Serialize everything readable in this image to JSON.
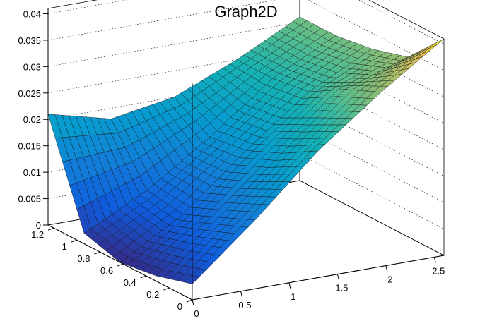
{
  "chart_data": {
    "type": "surface",
    "title": "Graph2D",
    "xlabel": "",
    "ylabel": "",
    "zlabel": "",
    "xlim": [
      0,
      2.6
    ],
    "ylim": [
      0,
      1.25
    ],
    "zlim": [
      0,
      0.041
    ],
    "grid": true,
    "legend": "none",
    "palette": "kBird",
    "x_ticks": [
      "0",
      "0.5",
      "1",
      "1.5",
      "2",
      "2.5"
    ],
    "y_ticks": [
      "0",
      "0.2",
      "0.4",
      "0.6",
      "0.8",
      "1",
      "1.2"
    ],
    "z_ticks": [
      "0",
      "0.005",
      "0.01",
      "0.015",
      "0.02",
      "0.025",
      "0.03",
      "0.035",
      "0.04"
    ],
    "x": [
      0.0,
      0.65,
      1.3,
      1.95,
      2.6
    ],
    "y": [
      0.0,
      0.3125,
      0.625,
      0.9375,
      1.25
    ],
    "z": [
      [
        0.003,
        0.013,
        0.024,
        0.033,
        0.041
      ],
      [
        0.001,
        0.01,
        0.02,
        0.03,
        0.034
      ],
      [
        0.0,
        0.007,
        0.017,
        0.026,
        0.032
      ],
      [
        0.002,
        0.008,
        0.016,
        0.025,
        0.031
      ],
      [
        0.021,
        0.018,
        0.02,
        0.025,
        0.031
      ]
    ]
  }
}
